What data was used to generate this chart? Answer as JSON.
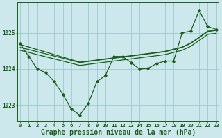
{
  "title": "Graphe pression niveau de la mer (hPa)",
  "bg_color": "#cce8ec",
  "grid_color": "#9dc8d0",
  "line_color": "#1a5c1a",
  "x_labels": [
    "0",
    "1",
    "2",
    "3",
    "4",
    "5",
    "6",
    "7",
    "8",
    "9",
    "10",
    "11",
    "12",
    "13",
    "14",
    "15",
    "16",
    "17",
    "18",
    "19",
    "20",
    "21",
    "22",
    "23"
  ],
  "x_values": [
    0,
    1,
    2,
    3,
    4,
    5,
    6,
    7,
    8,
    9,
    10,
    11,
    12,
    13,
    14,
    15,
    16,
    17,
    18,
    19,
    20,
    21,
    22,
    23
  ],
  "main_line": [
    1024.7,
    1024.35,
    1024.0,
    1023.9,
    1023.65,
    1023.3,
    1022.88,
    1022.72,
    1023.05,
    1023.65,
    1023.82,
    1024.35,
    1024.35,
    1024.18,
    1024.0,
    1024.02,
    1024.15,
    1024.22,
    1024.22,
    1025.0,
    1025.05,
    1025.62,
    1025.18,
    1025.1
  ],
  "trend_line1": [
    1024.68,
    1024.61,
    1024.54,
    1024.47,
    1024.4,
    1024.33,
    1024.26,
    1024.19,
    1024.22,
    1024.25,
    1024.28,
    1024.31,
    1024.34,
    1024.37,
    1024.4,
    1024.43,
    1024.46,
    1024.49,
    1024.55,
    1024.61,
    1024.72,
    1024.88,
    1025.05,
    1025.08
  ],
  "trend_line2": [
    1024.6,
    1024.54,
    1024.48,
    1024.42,
    1024.36,
    1024.3,
    1024.24,
    1024.18,
    1024.21,
    1024.24,
    1024.27,
    1024.3,
    1024.33,
    1024.36,
    1024.39,
    1024.42,
    1024.45,
    1024.48,
    1024.54,
    1024.6,
    1024.71,
    1024.87,
    1025.04,
    1025.07
  ],
  "trend_line3": [
    1024.52,
    1024.46,
    1024.4,
    1024.34,
    1024.28,
    1024.22,
    1024.16,
    1024.1,
    1024.13,
    1024.16,
    1024.19,
    1024.22,
    1024.25,
    1024.28,
    1024.31,
    1024.34,
    1024.37,
    1024.4,
    1024.46,
    1024.52,
    1024.63,
    1024.79,
    1024.96,
    1024.99
  ],
  "ylim": [
    1022.55,
    1025.85
  ],
  "yticks": [
    1023,
    1024,
    1025
  ],
  "figsize": [
    3.2,
    2.0
  ],
  "dpi": 100,
  "title_fontsize": 7.0,
  "tick_fontsize": 5.2
}
